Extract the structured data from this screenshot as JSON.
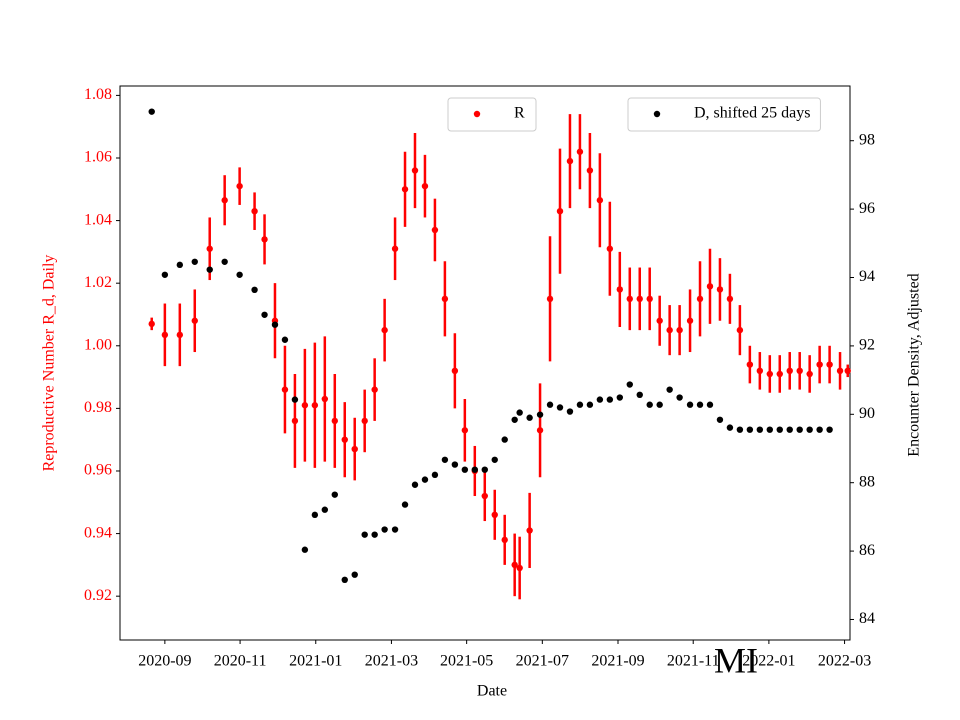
{
  "chart_data": {
    "type": "scatter",
    "annotation": "MI",
    "x_label": "Date",
    "y_label": "Reproductive Number R_d, Daily",
    "y2_label": "Encounter Density, Adjusted",
    "y_label_color": "#ff0000",
    "xlim": [
      2020.568,
      2022.179
    ],
    "xticks": [
      {
        "value": 2020.667,
        "label": "2020-09"
      },
      {
        "value": 2020.833,
        "label": "2020-11"
      },
      {
        "value": 2021.0,
        "label": "2021-01"
      },
      {
        "value": 2021.167,
        "label": "2021-03"
      },
      {
        "value": 2021.333,
        "label": "2021-05"
      },
      {
        "value": 2021.5,
        "label": "2021-07"
      },
      {
        "value": 2021.667,
        "label": "2021-09"
      },
      {
        "value": 2021.833,
        "label": "2021-11"
      },
      {
        "value": 2022.0,
        "label": "2022-01"
      },
      {
        "value": 2022.167,
        "label": "2022-03"
      }
    ],
    "ylim": [
      0.906,
      1.083
    ],
    "yticks": [
      0.92,
      0.94,
      0.96,
      0.98,
      {
        "value": 1,
        "label": "1.00"
      },
      1.02,
      1.04,
      1.06,
      1.08
    ],
    "y2lim": [
      83.4,
      99.6
    ],
    "y2ticks": [
      84,
      86,
      88,
      90,
      92,
      94,
      96,
      98
    ],
    "x": [
      2020.638,
      2020.667,
      2020.7,
      2020.733,
      2020.766,
      2020.799,
      2020.832,
      2020.865,
      2020.887,
      2020.91,
      2020.932,
      2020.954,
      2020.976,
      2020.998,
      2021.02,
      2021.042,
      2021.064,
      2021.086,
      2021.108,
      2021.13,
      2021.152,
      2021.175,
      2021.197,
      2021.219,
      2021.241,
      2021.263,
      2021.285,
      2021.307,
      2021.329,
      2021.351,
      2021.373,
      2021.395,
      2021.417,
      2021.439,
      2021.45,
      2021.472,
      2021.495,
      2021.517,
      2021.539,
      2021.561,
      2021.583,
      2021.605,
      2021.627,
      2021.649,
      2021.671,
      2021.693,
      2021.715,
      2021.737,
      2021.759,
      2021.781,
      2021.803,
      2021.826,
      2021.848,
      2021.87,
      2021.892,
      2021.914,
      2021.936,
      2021.958,
      2021.98,
      2022.002,
      2022.024,
      2022.046,
      2022.068,
      2022.09,
      2022.112,
      2022.134,
      2022.157,
      2022.174
    ],
    "series": [
      {
        "name": "R",
        "color": "#ff0000",
        "legend": "upper center",
        "values": [
          1.007,
          1.0035,
          1.0035,
          1.008,
          1.031,
          1.0465,
          1.051,
          1.043,
          1.034,
          1.008,
          0.986,
          0.976,
          0.981,
          0.981,
          0.983,
          0.976,
          0.97,
          0.967,
          0.976,
          0.986,
          1.005,
          1.031,
          1.05,
          1.056,
          1.051,
          1.037,
          1.015,
          0.992,
          0.973,
          0.96,
          0.952,
          0.946,
          0.938,
          0.93,
          0.929,
          0.941,
          0.973,
          1.015,
          1.043,
          1.059,
          1.062,
          1.056,
          1.0465,
          1.031,
          1.018,
          1.015,
          1.015,
          1.015,
          1.008,
          1.005,
          1.005,
          1.008,
          1.015,
          1.019,
          1.018,
          1.015,
          1.005,
          0.994,
          0.992,
          0.991,
          0.991,
          0.992,
          0.992,
          0.991,
          0.994,
          0.994,
          0.992,
          0.992
        ],
        "errors": [
          0.002,
          0.01,
          0.01,
          0.01,
          0.01,
          0.008,
          0.006,
          0.006,
          0.008,
          0.012,
          0.014,
          0.015,
          0.018,
          0.02,
          0.02,
          0.015,
          0.012,
          0.01,
          0.01,
          0.01,
          0.01,
          0.01,
          0.012,
          0.012,
          0.01,
          0.01,
          0.012,
          0.012,
          0.01,
          0.008,
          0.008,
          0.008,
          0.008,
          0.01,
          0.01,
          0.012,
          0.015,
          0.02,
          0.02,
          0.015,
          0.012,
          0.012,
          0.015,
          0.015,
          0.012,
          0.01,
          0.01,
          0.01,
          0.008,
          0.008,
          0.008,
          0.01,
          0.012,
          0.012,
          0.01,
          0.008,
          0.008,
          0.006,
          0.006,
          0.006,
          0.006,
          0.006,
          0.006,
          0.006,
          0.006,
          0.006,
          0.006,
          0.002
        ]
      },
      {
        "name": "D, shifted 25 days",
        "color": "#000000",
        "axis": "y2",
        "legend": "upper right",
        "values": [
          98.85,
          94.08,
          94.37,
          94.46,
          94.23,
          94.46,
          94.08,
          93.64,
          92.91,
          92.62,
          92.18,
          90.43,
          86.04,
          87.06,
          87.21,
          87.65,
          85.16,
          85.31,
          86.48,
          86.48,
          86.63,
          86.63,
          87.36,
          87.94,
          88.09,
          88.23,
          88.67,
          88.53,
          88.38,
          88.38,
          88.38,
          88.67,
          89.26,
          89.84,
          90.05,
          89.9,
          89.99,
          90.28,
          90.2,
          90.08,
          90.28,
          90.28,
          90.43,
          90.43,
          90.49,
          90.87,
          90.57,
          90.28,
          90.28,
          90.72,
          90.49,
          90.28,
          90.28,
          90.28,
          89.84,
          89.61,
          89.55,
          89.55,
          89.55,
          89.55,
          89.55,
          89.55,
          89.55,
          89.55,
          89.55,
          89.55,
          null,
          null
        ]
      }
    ]
  }
}
